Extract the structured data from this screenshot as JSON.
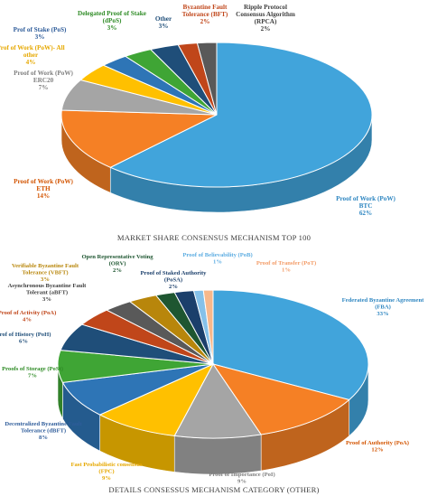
{
  "chart_data": [
    {
      "type": "pie",
      "style": "3d",
      "title": "MARKET SHARE CONSENSUS MECHANISM TOP 100",
      "legend": "none",
      "slices": [
        {
          "label": "Proof of Work (PoW)\nBTC",
          "pct_text": "62%",
          "value": 62,
          "color": "#41A4DB",
          "label_color": "#2E86C1"
        },
        {
          "label": "Proof of Work (PoW)\nETH",
          "pct_text": "14%",
          "value": 14,
          "color": "#F58025",
          "label_color": "#D35400"
        },
        {
          "label": "Proof of Work (PoW)\nERC20",
          "pct_text": "7%",
          "value": 7,
          "color": "#A5A5A5",
          "label_color": "#7F7F7F"
        },
        {
          "label": "Prof of Work (PoW)- All\nother",
          "pct_text": "4%",
          "value": 4,
          "color": "#FFC000",
          "label_color": "#E6A800"
        },
        {
          "label": "Prof of Stake (PoS)",
          "pct_text": "3%",
          "value": 3,
          "color": "#2E75B6",
          "label_color": "#2E5C9A"
        },
        {
          "label": "Delegated Proof of Stake\n(dPoS)",
          "pct_text": "3%",
          "value": 3,
          "color": "#3FA535",
          "label_color": "#2E8B25"
        },
        {
          "label": "Other",
          "pct_text": "3%",
          "value": 3,
          "color": "#1F4E79",
          "label_color": "#1F4E79"
        },
        {
          "label": "Byzantine Fault\nTolerance (BFT)",
          "pct_text": "2%",
          "value": 2,
          "color": "#C0461A",
          "label_color": "#C0461A"
        },
        {
          "label": "Ripple Protocol\nConsensus Algorithm\n(RPCA)",
          "pct_text": "2%",
          "value": 2,
          "color": "#595959",
          "label_color": "#404040"
        }
      ]
    },
    {
      "type": "pie",
      "style": "3d",
      "title": "DETAILS CONSESSUS MECHANISM CATEGORY (OTHER)",
      "legend": "none",
      "slices": [
        {
          "label": "Federated Byzantine Agreement\n(FBA)",
          "pct_text": "33%",
          "value": 33,
          "color": "#41A4DB",
          "label_color": "#2E86C1"
        },
        {
          "label": "Proof of Authority (PoA)",
          "pct_text": "12%",
          "value": 12,
          "color": "#F58025",
          "label_color": "#D35400"
        },
        {
          "label": "Proof of Importance (PoI)",
          "pct_text": "9%",
          "value": 9,
          "color": "#A5A5A5",
          "label_color": "#7F7F7F"
        },
        {
          "label": "Fast Probabilistic consensus\n(FPC)",
          "pct_text": "9%",
          "value": 9,
          "color": "#FFC000",
          "label_color": "#E6A800"
        },
        {
          "label": "Decentralized Byzantine Fault\nTolerance (dBFT)",
          "pct_text": "8%",
          "value": 8,
          "color": "#2E75B6",
          "label_color": "#2E5C9A"
        },
        {
          "label": "Proofs of Storage (PoSt)",
          "pct_text": "7%",
          "value": 7,
          "color": "#3FA535",
          "label_color": "#2E8B25"
        },
        {
          "label": "Prof of History (PoH)",
          "pct_text": "6%",
          "value": 6,
          "color": "#1F4E79",
          "label_color": "#1F4E79"
        },
        {
          "label": "Proof of Activity (PoA)",
          "pct_text": "4%",
          "value": 4,
          "color": "#C0461A",
          "label_color": "#C0461A"
        },
        {
          "label": "Asynchronous Byzantine Fault\nTolerant (aBFT)",
          "pct_text": "3%",
          "value": 3,
          "color": "#595959",
          "label_color": "#404040"
        },
        {
          "label": "Verifiable Byzantine Fault\nTolerance (VBFT)",
          "pct_text": "3%",
          "value": 3,
          "color": "#B8860B",
          "label_color": "#B8860B"
        },
        {
          "label": "Open Representative Voting\n(ORV)",
          "pct_text": "2%",
          "value": 2,
          "color": "#1E5631",
          "label_color": "#1E5631"
        },
        {
          "label": "Proof of Staked Authority\n(PoSA)",
          "pct_text": "2%",
          "value": 2,
          "color": "#1B3F6B",
          "label_color": "#1B3F6B"
        },
        {
          "label": "Proof of Believability (PoB)",
          "pct_text": "1%",
          "value": 1,
          "color": "#85C1E9",
          "label_color": "#5DADE2"
        },
        {
          "label": "Proof of Transfer (PoT)",
          "pct_text": "1%",
          "value": 1,
          "color": "#F8B88B",
          "label_color": "#F39C68"
        }
      ]
    }
  ]
}
